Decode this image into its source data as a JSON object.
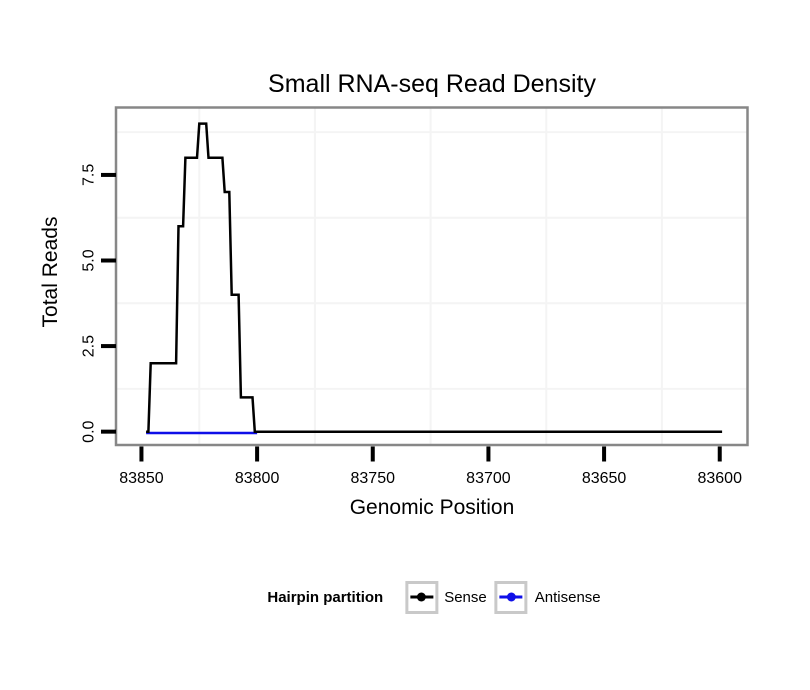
{
  "chart_data": {
    "type": "line",
    "subtype": "step",
    "title": "Small RNA-seq Read Density",
    "xlabel": "Genomic Position",
    "ylabel": "Total Reads",
    "legend_title": "Hairpin partition",
    "legend_position": "bottom",
    "x_axis_reversed": true,
    "x_ticks": [
      83850,
      83800,
      83750,
      83700,
      83650,
      83600
    ],
    "x_tick_labels": [
      "83850",
      "83800",
      "83750",
      "83700",
      "83650",
      "83600"
    ],
    "y_ticks": [
      0.0,
      2.5,
      5.0,
      7.5
    ],
    "y_tick_labels": [
      "0.0",
      "2.5",
      "5.0",
      "7.5"
    ],
    "xlim_left_to_right": [
      83861,
      83588
    ],
    "ylim": [
      -0.39,
      9.47
    ],
    "grid": "minor-only",
    "x_minor_gridlines": [
      83825,
      83775,
      83725,
      83675,
      83625
    ],
    "y_minor_gridlines": [
      1.25,
      3.75,
      6.25,
      8.75
    ],
    "series": [
      {
        "name": "Sense",
        "color": "#000000",
        "steps": [
          {
            "start": 83848,
            "end": 83847,
            "reads": 0
          },
          {
            "start": 83846,
            "end": 83835,
            "reads": 2
          },
          {
            "start": 83834,
            "end": 83832,
            "reads": 6
          },
          {
            "start": 83831,
            "end": 83826,
            "reads": 8
          },
          {
            "start": 83825,
            "end": 83822,
            "reads": 9
          },
          {
            "start": 83821,
            "end": 83815,
            "reads": 8
          },
          {
            "start": 83814,
            "end": 83812,
            "reads": 7
          },
          {
            "start": 83811,
            "end": 83808,
            "reads": 4
          },
          {
            "start": 83807,
            "end": 83802,
            "reads": 1
          },
          {
            "start": 83801,
            "end": 83599,
            "reads": 0
          }
        ]
      },
      {
        "name": "Antisense",
        "color": "#0F0FE8",
        "steps": [
          {
            "start": 83848,
            "end": 83800,
            "reads": 0
          }
        ]
      }
    ],
    "colors": {
      "background": "#FFFFFF",
      "panel_border": "#878787",
      "minor_gridline": "#F4F4F4",
      "tick_mark": "#000000",
      "text": "#000000",
      "legend_key_border": "#C9C9C9"
    }
  }
}
